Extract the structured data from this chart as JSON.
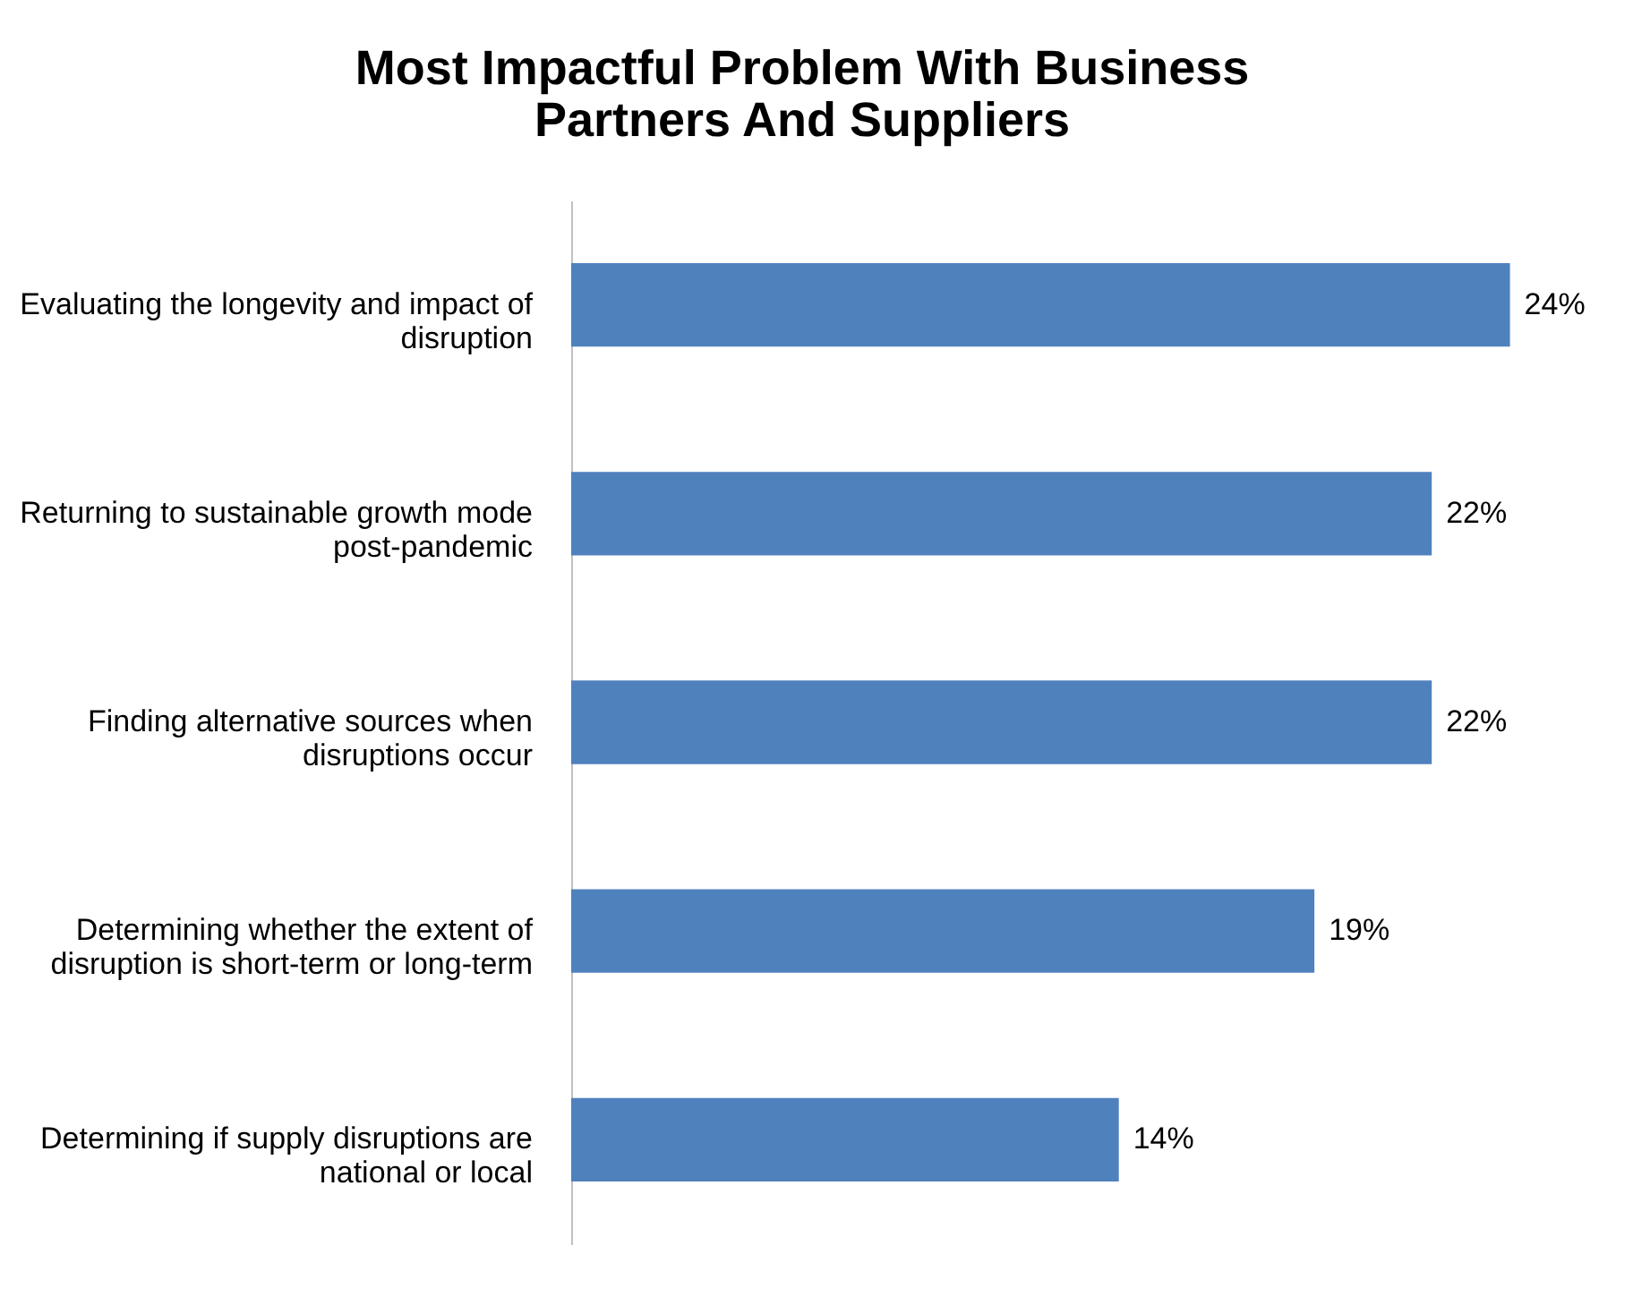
{
  "chart_data": {
    "type": "bar",
    "orientation": "horizontal",
    "title": "Most Impactful Problem With Business Partners And Suppliers",
    "categories": [
      "Evaluating the longevity and impact of disruption",
      "Returning to sustainable growth mode post-pandemic",
      "Finding alternative sources when disruptions occur",
      "Determining whether the extent of disruption is short-term or long-term",
      "Determining if supply disruptions are national or local"
    ],
    "values": [
      24,
      22,
      22,
      19,
      14
    ],
    "value_labels": [
      "24%",
      "22%",
      "22%",
      "19%",
      "14%"
    ],
    "color": "#4f81bd",
    "grid": false
  }
}
